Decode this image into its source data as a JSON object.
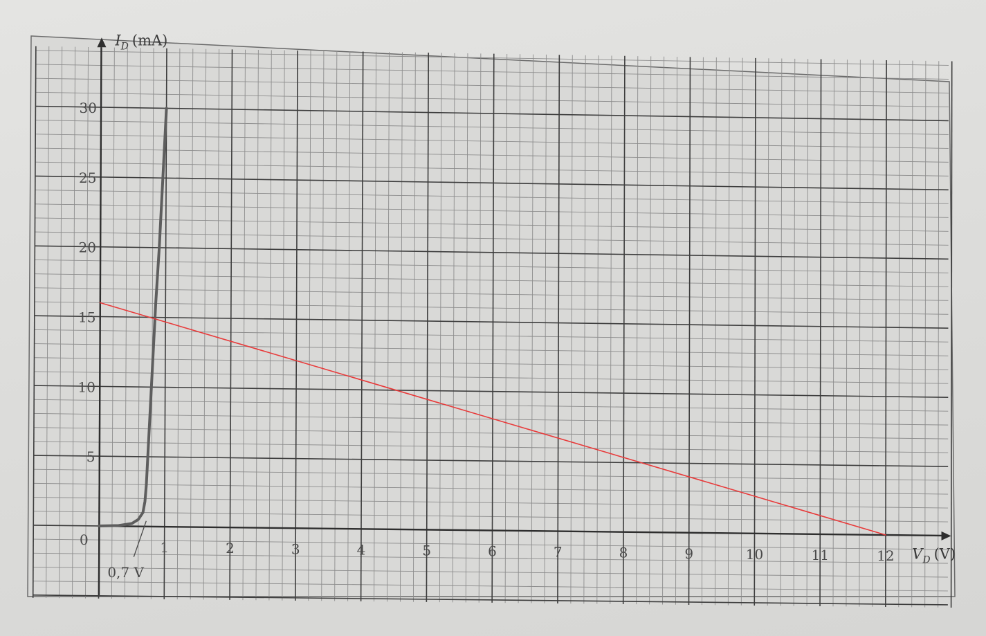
{
  "chart_data": {
    "type": "line",
    "x_axis": {
      "symbol": "V",
      "subscript": "D",
      "unit": "(V)",
      "range": [
        0,
        12
      ],
      "ticks": [
        "1",
        "2",
        "3",
        "4",
        "5",
        "6",
        "7",
        "8",
        "9",
        "10",
        "11",
        "12"
      ]
    },
    "y_axis": {
      "symbol": "I",
      "subscript": "D",
      "unit": "(mA)",
      "range": [
        0,
        30
      ],
      "ticks": [
        "5",
        "10",
        "15",
        "20",
        "25",
        "30"
      ]
    },
    "origin_label": "0",
    "annotation": {
      "text": "0,7 V",
      "x": 0.7
    },
    "grid": true,
    "series": [
      {
        "color": "#5e5e5e",
        "x": [
          0,
          0.3,
          0.5,
          0.6,
          0.67,
          0.7,
          0.72,
          0.75,
          0.8,
          0.85,
          0.9,
          0.95,
          1.0
        ],
        "y": [
          0,
          0.05,
          0.2,
          0.5,
          1.0,
          1.8,
          3,
          6,
          11,
          16,
          20,
          25,
          30
        ]
      },
      {
        "color": "#e83a3a",
        "x": [
          0,
          12
        ],
        "y": [
          16,
          0
        ]
      }
    ]
  }
}
